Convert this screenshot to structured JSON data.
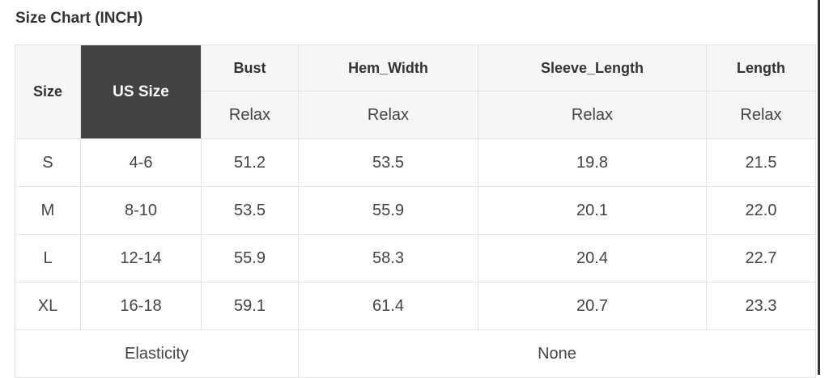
{
  "title": "Size Chart (INCH)",
  "headers": {
    "size": "Size",
    "us_size": "US Size",
    "bust": "Bust",
    "hem_width": "Hem_Width",
    "sleeve_length": "Sleeve_Length",
    "length": "Length"
  },
  "subheader": "Relax",
  "rows": [
    {
      "size": "S",
      "us": "4-6",
      "bust": "51.2",
      "hem": "53.5",
      "sleeve": "19.8",
      "length": "21.5"
    },
    {
      "size": "M",
      "us": "8-10",
      "bust": "53.5",
      "hem": "55.9",
      "sleeve": "20.1",
      "length": "22.0"
    },
    {
      "size": "L",
      "us": "12-14",
      "bust": "55.9",
      "hem": "58.3",
      "sleeve": "20.4",
      "length": "22.7"
    },
    {
      "size": "XL",
      "us": "16-18",
      "bust": "59.1",
      "hem": "61.4",
      "sleeve": "20.7",
      "length": "23.3"
    }
  ],
  "footer": {
    "label": "Elasticity",
    "value": "None"
  },
  "colors": {
    "us_size_header_bg": "#424242",
    "header_bg": "#f6f6f6",
    "border": "#e3e3e3"
  }
}
